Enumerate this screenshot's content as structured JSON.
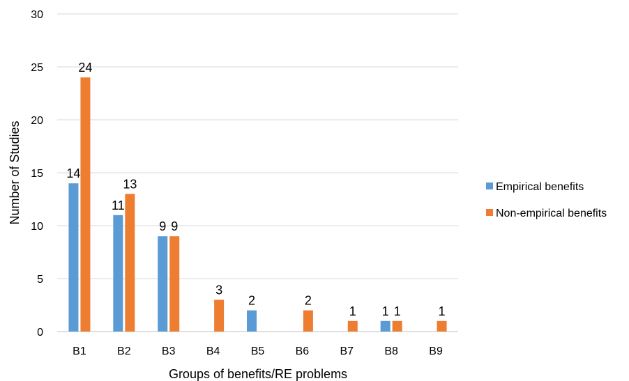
{
  "chart_data": {
    "type": "bar",
    "categories": [
      "B1",
      "B2",
      "B3",
      "B4",
      "B5",
      "B6",
      "B7",
      "B8",
      "B9"
    ],
    "series": [
      {
        "name": "Empirical benefits",
        "color": "#5B9BD5",
        "values": [
          14,
          11,
          9,
          null,
          2,
          null,
          null,
          1,
          null
        ]
      },
      {
        "name": "Non-empirical benefits",
        "color": "#ED7D31",
        "values": [
          24,
          13,
          9,
          3,
          null,
          2,
          1,
          1,
          1
        ]
      }
    ],
    "xlabel": "Groups of benefits/RE problems",
    "ylabel": "Number of Studies",
    "ylim": [
      0,
      30
    ],
    "yticks": [
      0,
      5,
      10,
      15,
      20,
      25,
      30
    ],
    "grid": true,
    "legend_position": "right"
  }
}
